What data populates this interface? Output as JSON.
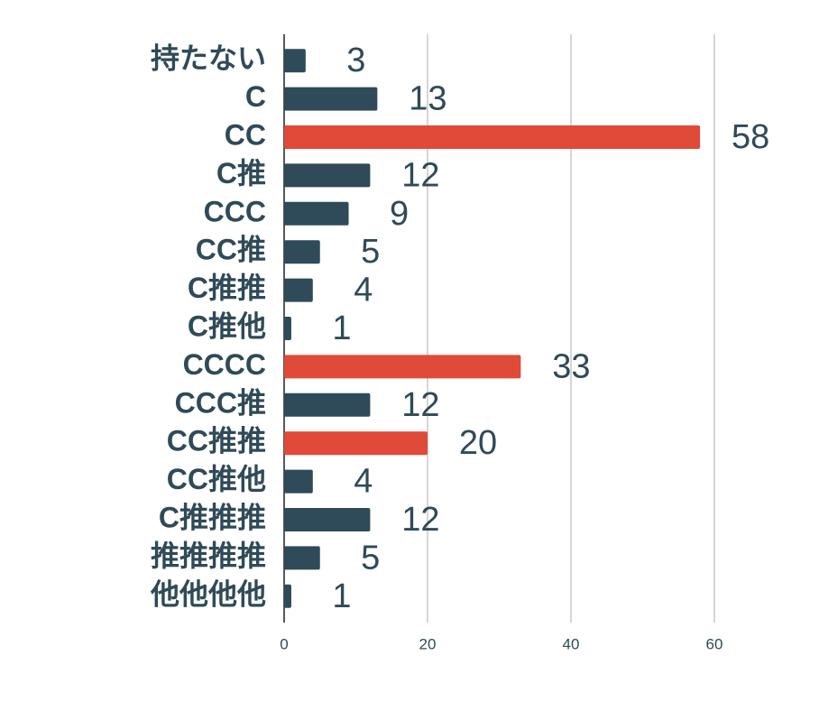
{
  "chart_data": {
    "type": "bar",
    "orientation": "horizontal",
    "categories": [
      "持たない",
      "C",
      "CC",
      "C推",
      "CCC",
      "CC推",
      "C推推",
      "C推他",
      "CCCC",
      "CCC推",
      "CC推推",
      "CC推他",
      "C推推推",
      "推推推推",
      "他他他他"
    ],
    "values": [
      3,
      13,
      58,
      12,
      9,
      5,
      4,
      1,
      33,
      12,
      20,
      4,
      12,
      5,
      1
    ],
    "colors": [
      "#2f4a58",
      "#2f4a58",
      "#e04a38",
      "#2f4a58",
      "#2f4a58",
      "#2f4a58",
      "#2f4a58",
      "#2f4a58",
      "#e04a38",
      "#2f4a58",
      "#e04a38",
      "#2f4a58",
      "#2f4a58",
      "#2f4a58",
      "#2f4a58"
    ],
    "xlim": [
      0,
      70
    ],
    "xticks": [
      0,
      20,
      40,
      60
    ],
    "grid": true
  }
}
